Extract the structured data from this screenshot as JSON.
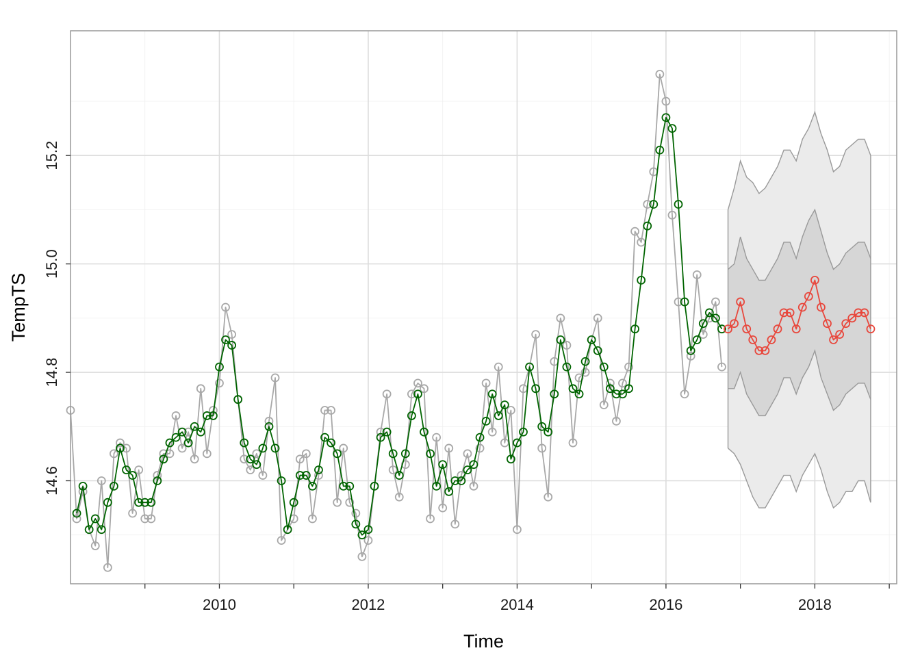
{
  "chart_data": {
    "type": "line",
    "title": "",
    "xlabel": "Time",
    "ylabel": "TempTS",
    "xlim": [
      2008.0,
      2019.1
    ],
    "ylim": [
      14.41,
      15.43
    ],
    "x_ticks": [
      2010,
      2012,
      2014,
      2016,
      2018
    ],
    "y_ticks": [
      14.6,
      14.8,
      15.0,
      15.2
    ],
    "grid": true,
    "legend": "none",
    "colors": {
      "observed": "#a8a8a8",
      "fitted": "#006400",
      "forecast": "#e8473c",
      "band_80": "#d6d6d6",
      "band_95": "#ebebeb",
      "band_edge": "#999999",
      "panel_border": "#999999"
    },
    "start": 2008.0,
    "frequency": 12,
    "series": [
      {
        "values": [
          14.73,
          14.53,
          14.58,
          14.51,
          14.48,
          14.6,
          14.44,
          14.65,
          14.67,
          14.66,
          14.54,
          14.62,
          14.53,
          14.53,
          14.61,
          14.65,
          14.65,
          14.72,
          14.66,
          14.69,
          14.64,
          14.77,
          14.65,
          14.73,
          14.78,
          14.92,
          14.87,
          14.75,
          14.64,
          14.62,
          14.65,
          14.61,
          14.71,
          14.79,
          14.49,
          14.51,
          14.53,
          14.64,
          14.65,
          14.53,
          14.61,
          14.73,
          14.73,
          14.56,
          14.66,
          14.56,
          14.54,
          14.46,
          14.49,
          14.59,
          14.69,
          14.76,
          14.62,
          14.57,
          14.63,
          14.76,
          14.78,
          14.77,
          14.53,
          14.68,
          14.55,
          14.66,
          14.52,
          14.61,
          14.65,
          14.59,
          14.66,
          14.78,
          14.69,
          14.81,
          14.67,
          14.73,
          14.51,
          14.77,
          14.81,
          14.87,
          14.66,
          14.57,
          14.82,
          14.9,
          14.85,
          14.67,
          14.79,
          14.8,
          14.86,
          14.9,
          14.74,
          14.78,
          14.71,
          14.78,
          14.81,
          15.06,
          15.04,
          15.11,
          15.17,
          15.35,
          15.3,
          15.09,
          14.93,
          14.76,
          14.83,
          14.98,
          14.87,
          14.9,
          14.93,
          14.81
        ]
      },
      {
        "values": [
          14.54,
          14.59,
          14.51,
          14.53,
          14.51,
          14.56,
          14.59,
          14.66,
          14.62,
          14.61,
          14.56,
          14.56,
          14.56,
          14.6,
          14.64,
          14.67,
          14.68,
          14.69,
          14.67,
          14.7,
          14.69,
          14.72,
          14.72,
          14.81,
          14.86,
          14.85,
          14.75,
          14.67,
          14.64,
          14.63,
          14.66,
          14.7,
          14.66,
          14.6,
          14.51,
          14.56,
          14.61,
          14.61,
          14.59,
          14.62,
          14.68,
          14.67,
          14.65,
          14.59,
          14.59,
          14.52,
          14.5,
          14.51,
          14.59,
          14.68,
          14.69,
          14.65,
          14.61,
          14.65,
          14.72,
          14.76,
          14.69,
          14.65,
          14.59,
          14.63,
          14.58,
          14.6,
          14.6,
          14.62,
          14.63,
          14.68,
          14.71,
          14.76,
          14.72,
          14.74,
          14.64,
          14.67,
          14.69,
          14.81,
          14.77,
          14.7,
          14.69,
          14.76,
          14.86,
          14.81,
          14.77,
          14.76,
          14.82,
          14.86,
          14.84,
          14.81,
          14.77,
          14.76,
          14.76,
          14.77,
          14.88,
          14.97,
          15.07,
          15.11,
          15.21,
          15.27,
          15.25,
          15.11,
          14.93,
          14.84,
          14.86,
          14.89,
          14.91,
          14.9,
          14.88
        ]
      },
      {
        "values": [
          14.88,
          14.89,
          14.93,
          14.88,
          14.86,
          14.84,
          14.84,
          14.86,
          14.88,
          14.91,
          14.91,
          14.88,
          14.92,
          14.94,
          14.97,
          14.92,
          14.89,
          14.86,
          14.87,
          14.89,
          14.9,
          14.91,
          14.91,
          14.88
        ],
        "lo80": [
          14.77,
          14.77,
          14.8,
          14.76,
          14.74,
          14.72,
          14.72,
          14.74,
          14.76,
          14.79,
          14.79,
          14.76,
          14.79,
          14.81,
          14.84,
          14.79,
          14.76,
          14.73,
          14.74,
          14.76,
          14.77,
          14.78,
          14.78,
          14.75
        ],
        "hi80": [
          14.99,
          15.0,
          15.05,
          15.01,
          14.99,
          14.97,
          14.97,
          14.99,
          15.01,
          15.04,
          15.04,
          15.01,
          15.05,
          15.08,
          15.1,
          15.06,
          15.02,
          14.99,
          15.0,
          15.02,
          15.03,
          15.04,
          15.04,
          15.01
        ],
        "lo95": [
          14.66,
          14.65,
          14.63,
          14.6,
          14.57,
          14.55,
          14.55,
          14.57,
          14.59,
          14.61,
          14.61,
          14.58,
          14.61,
          14.63,
          14.65,
          14.62,
          14.58,
          14.55,
          14.56,
          14.58,
          14.58,
          14.6,
          14.6,
          14.56
        ],
        "hi95": [
          15.1,
          15.14,
          15.19,
          15.16,
          15.15,
          15.13,
          15.14,
          15.16,
          15.18,
          15.21,
          15.21,
          15.19,
          15.23,
          15.25,
          15.28,
          15.24,
          15.21,
          15.17,
          15.18,
          15.21,
          15.22,
          15.23,
          15.23,
          15.2
        ]
      }
    ]
  }
}
